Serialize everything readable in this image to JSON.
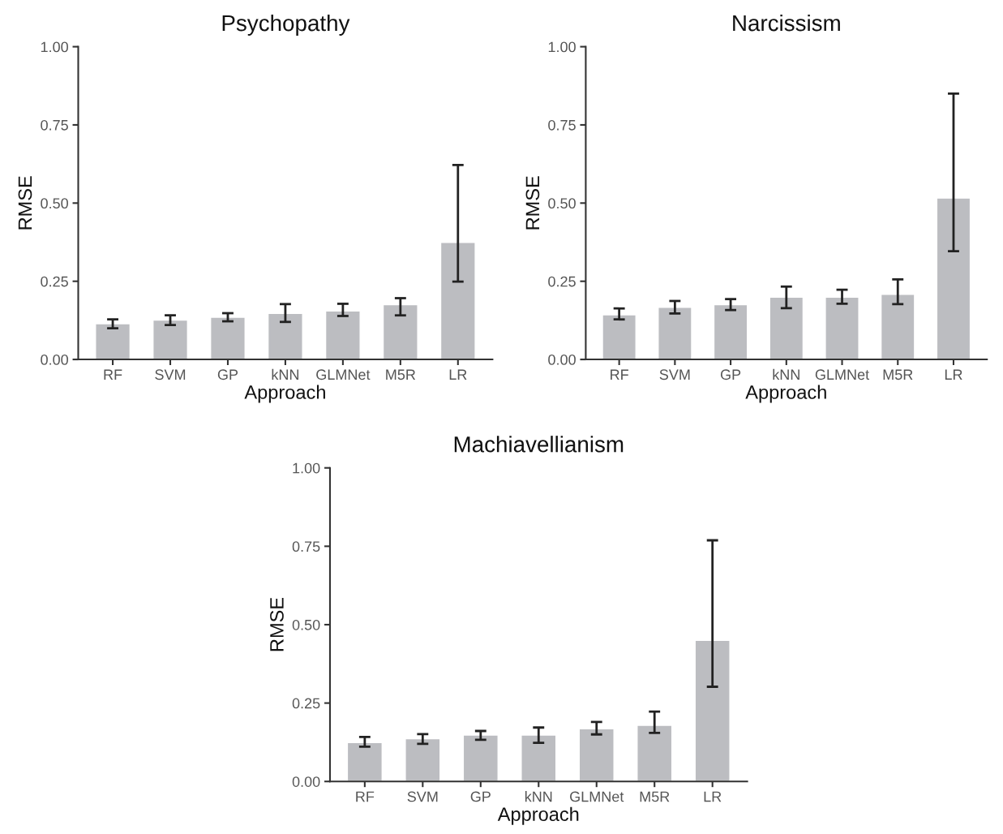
{
  "chart_data": [
    {
      "type": "bar",
      "title": "Psychopathy",
      "xlabel": "Approach",
      "ylabel": "RMSE",
      "categories": [
        "RF",
        "SVM",
        "GP",
        "kNN",
        "GLMNet",
        "M5R",
        "LR"
      ],
      "color": "#bcbdc1",
      "values": [
        0.114,
        0.126,
        0.135,
        0.147,
        0.155,
        0.175,
        0.374
      ],
      "errors": [
        [
          0.1,
          0.128
        ],
        [
          0.11,
          0.141
        ],
        [
          0.122,
          0.148
        ],
        [
          0.12,
          0.177
        ],
        [
          0.139,
          0.178
        ],
        [
          0.141,
          0.196
        ],
        [
          0.249,
          0.622
        ]
      ],
      "ylim": [
        0,
        1
      ],
      "yticks": [
        {
          "value": 0,
          "label": "0.00"
        },
        {
          "value": 0.25,
          "label": "0.25"
        },
        {
          "value": 0.5,
          "label": "0.50"
        },
        {
          "value": 0.75,
          "label": "0.75"
        },
        {
          "value": 1,
          "label": "1.00"
        }
      ],
      "grid": false,
      "legend": false
    },
    {
      "type": "bar",
      "title": "Narcissism",
      "xlabel": "Approach",
      "ylabel": "RMSE",
      "categories": [
        "RF",
        "SVM",
        "GP",
        "kNN",
        "GLMNet",
        "M5R",
        "LR"
      ],
      "color": "#bcbdc1",
      "values": [
        0.143,
        0.167,
        0.175,
        0.199,
        0.199,
        0.208,
        0.516
      ],
      "errors": [
        [
          0.128,
          0.163
        ],
        [
          0.147,
          0.187
        ],
        [
          0.158,
          0.193
        ],
        [
          0.164,
          0.233
        ],
        [
          0.178,
          0.223
        ],
        [
          0.177,
          0.256
        ],
        [
          0.346,
          0.85
        ]
      ],
      "ylim": [
        0,
        1
      ],
      "yticks": [
        {
          "value": 0,
          "label": "0.00"
        },
        {
          "value": 0.25,
          "label": "0.25"
        },
        {
          "value": 0.5,
          "label": "0.50"
        },
        {
          "value": 0.75,
          "label": "0.75"
        },
        {
          "value": 1,
          "label": "1.00"
        }
      ],
      "grid": false,
      "legend": false
    },
    {
      "type": "bar",
      "title": "Machiavellianism",
      "xlabel": "Approach",
      "ylabel": "RMSE",
      "categories": [
        "RF",
        "SVM",
        "GP",
        "kNN",
        "GLMNet",
        "M5R",
        "LR"
      ],
      "color": "#bcbdc1",
      "values": [
        0.124,
        0.136,
        0.148,
        0.148,
        0.168,
        0.179,
        0.45
      ],
      "errors": [
        [
          0.111,
          0.142
        ],
        [
          0.12,
          0.151
        ],
        [
          0.133,
          0.161
        ],
        [
          0.123,
          0.172
        ],
        [
          0.15,
          0.19
        ],
        [
          0.155,
          0.223
        ],
        [
          0.302,
          0.769
        ]
      ],
      "ylim": [
        0,
        1
      ],
      "yticks": [
        {
          "value": 0,
          "label": "0.00"
        },
        {
          "value": 0.25,
          "label": "0.25"
        },
        {
          "value": 0.5,
          "label": "0.50"
        },
        {
          "value": 0.75,
          "label": "0.75"
        },
        {
          "value": 1,
          "label": "1.00"
        }
      ],
      "grid": false,
      "legend": false
    }
  ]
}
